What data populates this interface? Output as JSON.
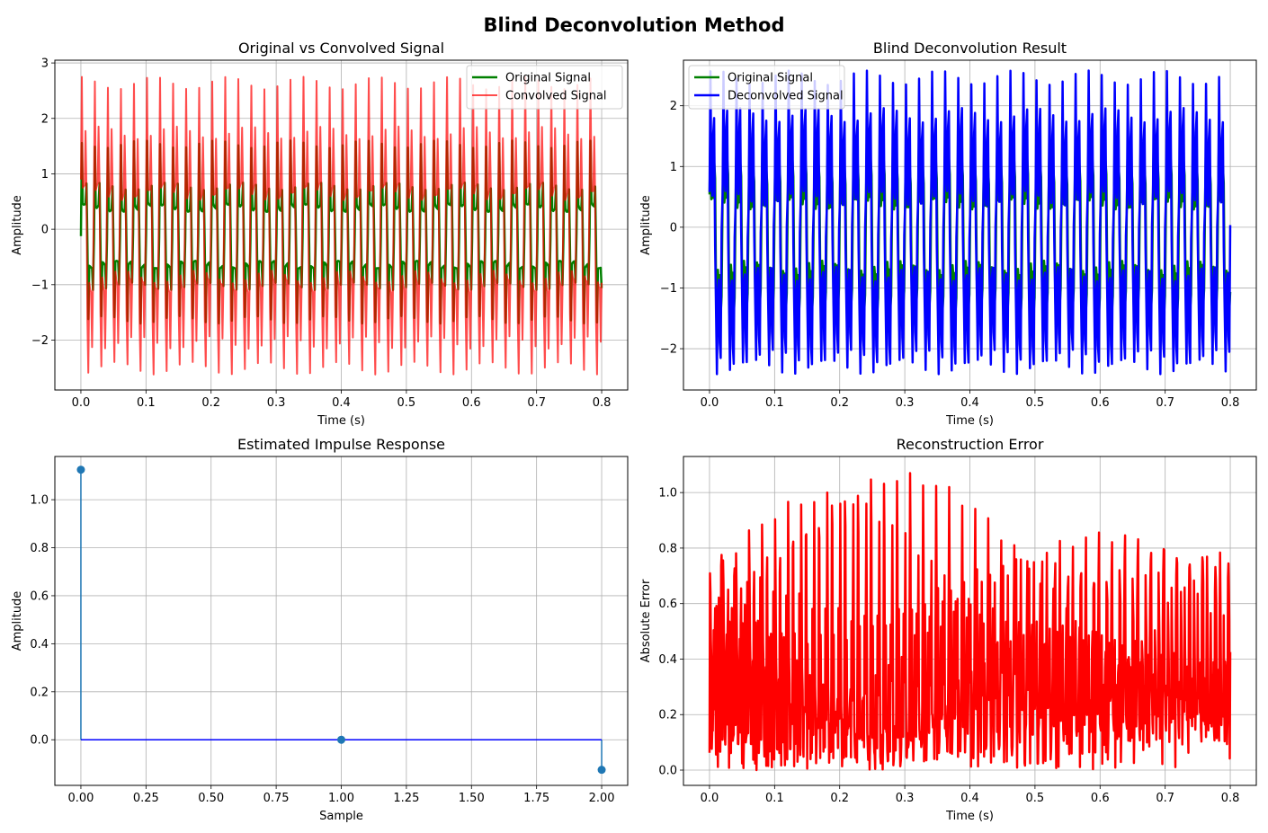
{
  "figure": {
    "title": "Blind Deconvolution Method"
  },
  "chart_data": [
    {
      "id": "orig-vs-conv",
      "type": "line",
      "title": "Original vs Convolved Signal",
      "xlabel": "Time (s)",
      "ylabel": "Amplitude",
      "xlim": [
        -0.04,
        0.84
      ],
      "ylim": [
        -2.9,
        3.05
      ],
      "xticks": [
        0.0,
        0.1,
        0.2,
        0.3,
        0.4,
        0.5,
        0.6,
        0.7,
        0.8
      ],
      "xtick_labels": [
        "0.0",
        "0.1",
        "0.2",
        "0.3",
        "0.4",
        "0.5",
        "0.6",
        "0.7",
        "0.8"
      ],
      "yticks": [
        -2,
        -1,
        0,
        1,
        2,
        3
      ],
      "ytick_labels": [
        "−2",
        "−1",
        "0",
        "1",
        "2",
        "3"
      ],
      "grid": true,
      "legend_position": "top-right",
      "x_range": [
        0.0,
        0.8
      ],
      "series": [
        {
          "name": "Original Signal",
          "color": "#008000",
          "line_width": 2.5,
          "opacity": 1,
          "peaks": {
            "ymax": 1.6,
            "ymin": -1.7,
            "count": 40
          }
        },
        {
          "name": "Convolved Signal",
          "color": "#ff0000",
          "line_width": 2,
          "opacity": 0.7,
          "peaks": {
            "ymax": 2.75,
            "ymin": -2.62,
            "count": 40
          }
        }
      ]
    },
    {
      "id": "blind-result",
      "type": "line",
      "title": "Blind Deconvolution Result",
      "xlabel": "Time (s)",
      "ylabel": "Amplitude",
      "xlim": [
        -0.04,
        0.84
      ],
      "ylim": [
        -2.68,
        2.75
      ],
      "xticks": [
        0.0,
        0.1,
        0.2,
        0.3,
        0.4,
        0.5,
        0.6,
        0.7,
        0.8
      ],
      "xtick_labels": [
        "0.0",
        "0.1",
        "0.2",
        "0.3",
        "0.4",
        "0.5",
        "0.6",
        "0.7",
        "0.8"
      ],
      "yticks": [
        -2,
        -1,
        0,
        1,
        2
      ],
      "ytick_labels": [
        "−2",
        "−1",
        "0",
        "1",
        "2"
      ],
      "grid": true,
      "legend_position": "top-left",
      "x_range": [
        0.0,
        0.8
      ],
      "series": [
        {
          "name": "Original Signal",
          "color": "#008000",
          "line_width": 2.5,
          "opacity": 1,
          "peaks": {
            "ymax": 1.6,
            "ymin": -1.7,
            "count": 40
          }
        },
        {
          "name": "Deconvolved Signal",
          "color": "#0000ff",
          "line_width": 2.5,
          "opacity": 1,
          "peaks": {
            "ymax": 2.58,
            "ymin": -2.42,
            "count": 40
          }
        }
      ]
    },
    {
      "id": "impulse",
      "type": "scatter",
      "title": "Estimated Impulse Response",
      "xlabel": "Sample",
      "ylabel": "Amplitude",
      "xlim": [
        -0.1,
        2.1
      ],
      "ylim": [
        -0.19,
        1.18
      ],
      "xticks": [
        0.0,
        0.25,
        0.5,
        0.75,
        1.0,
        1.25,
        1.5,
        1.75,
        2.0
      ],
      "xtick_labels": [
        "0.00",
        "0.25",
        "0.50",
        "0.75",
        "1.00",
        "1.25",
        "1.50",
        "1.75",
        "2.00"
      ],
      "yticks": [
        0.0,
        0.2,
        0.4,
        0.6,
        0.8,
        1.0
      ],
      "ytick_labels": [
        "0.0",
        "0.2",
        "0.4",
        "0.6",
        "0.8",
        "1.0"
      ],
      "grid": true,
      "stem": true,
      "x": [
        0,
        1,
        2
      ],
      "y": [
        1.125,
        0.0,
        -0.125
      ],
      "marker_color": "#1f77b4",
      "baseline_color": "#0000ff"
    },
    {
      "id": "recon-error",
      "type": "line",
      "title": "Reconstruction Error",
      "xlabel": "Time (s)",
      "ylabel": "Absolute Error",
      "xlim": [
        -0.04,
        0.84
      ],
      "ylim": [
        -0.055,
        1.13
      ],
      "xticks": [
        0.0,
        0.1,
        0.2,
        0.3,
        0.4,
        0.5,
        0.6,
        0.7,
        0.8
      ],
      "xtick_labels": [
        "0.0",
        "0.1",
        "0.2",
        "0.3",
        "0.4",
        "0.5",
        "0.6",
        "0.7",
        "0.8"
      ],
      "yticks": [
        0.0,
        0.2,
        0.4,
        0.6,
        0.8,
        1.0
      ],
      "ytick_labels": [
        "0.0",
        "0.2",
        "0.4",
        "0.6",
        "0.8",
        "1.0"
      ],
      "grid": true,
      "x_range": [
        0.0,
        0.8
      ],
      "series": [
        {
          "name": "",
          "color": "#ff0000",
          "line_width": 2.5,
          "opacity": 1,
          "peaks": {
            "ymax": 1.07,
            "ymin": 0.0,
            "count": 80
          }
        }
      ]
    }
  ]
}
